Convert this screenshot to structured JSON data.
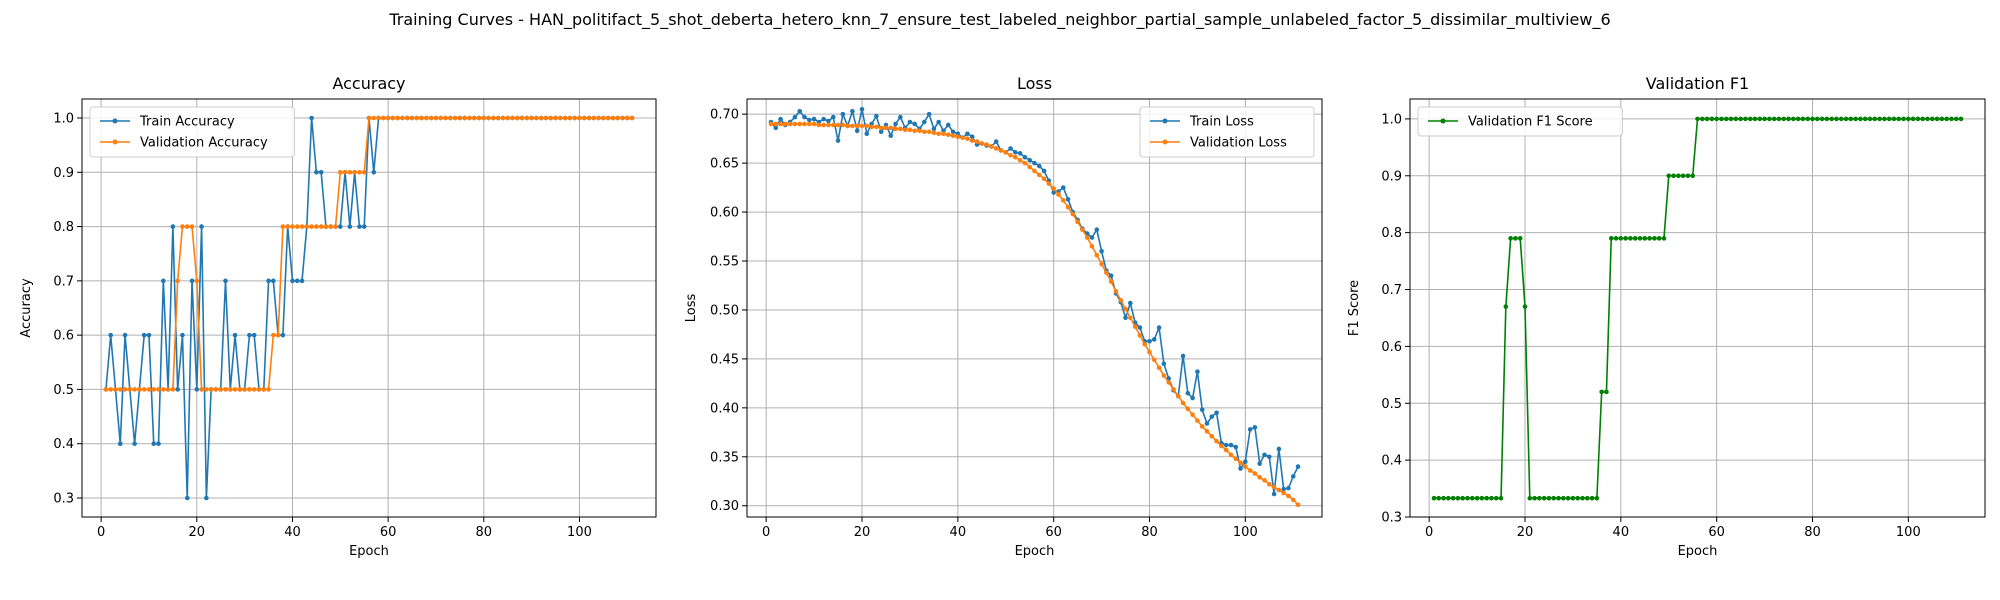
{
  "suptitle": "Training Curves - HAN_politifact_5_shot_deberta_hetero_knn_7_ensure_test_labeled_neighbor_partial_sample_unlabeled_factor_5_dissimilar_multiview_6",
  "colors": {
    "blue": "#1f77b4",
    "orange": "#ff7f0e",
    "green": "#008000",
    "grid": "#b0b0b0"
  },
  "chart_data": [
    {
      "type": "line",
      "title": "Accuracy",
      "xlabel": "Epoch",
      "ylabel": "Accuracy",
      "xlim": [
        -4,
        116
      ],
      "ylim": [
        0.265,
        1.035
      ],
      "xticks": [
        0,
        20,
        40,
        60,
        80,
        100
      ],
      "xtick_labels": [
        "0",
        "20",
        "40",
        "60",
        "80",
        "100"
      ],
      "yticks": [
        0.3,
        0.4,
        0.5,
        0.6,
        0.7,
        0.8,
        0.9,
        1.0
      ],
      "ytick_labels": [
        "0.3",
        "0.4",
        "0.5",
        "0.6",
        "0.7",
        "0.8",
        "0.9",
        "1.0"
      ],
      "grid": true,
      "legend_position": "upper left",
      "series": [
        {
          "name": "Train Accuracy",
          "color": "#1f77b4",
          "x_start": 1,
          "values": [
            0.5,
            0.6,
            0.5,
            0.4,
            0.6,
            0.5,
            0.4,
            0.5,
            0.6,
            0.6,
            0.4,
            0.4,
            0.7,
            0.5,
            0.8,
            0.5,
            0.6,
            0.3,
            0.7,
            0.5,
            0.8,
            0.3,
            0.5,
            0.5,
            0.5,
            0.7,
            0.5,
            0.6,
            0.5,
            0.5,
            0.6,
            0.6,
            0.5,
            0.5,
            0.7,
            0.7,
            0.6,
            0.6,
            0.8,
            0.7,
            0.7,
            0.7,
            0.8,
            1.0,
            0.9,
            0.9,
            0.8,
            0.8,
            0.8,
            0.8,
            0.9,
            0.8,
            0.9,
            0.8,
            0.8,
            1.0,
            0.9,
            1.0,
            1.0,
            1.0,
            1.0,
            1.0,
            1.0,
            1.0,
            1.0,
            1.0,
            1.0,
            1.0,
            1.0,
            1.0,
            1.0,
            1.0,
            1.0,
            1.0,
            1.0,
            1.0,
            1.0,
            1.0,
            1.0,
            1.0,
            1.0,
            1.0,
            1.0,
            1.0,
            1.0,
            1.0,
            1.0,
            1.0,
            1.0,
            1.0,
            1.0,
            1.0,
            1.0,
            1.0,
            1.0,
            1.0,
            1.0,
            1.0,
            1.0,
            1.0,
            1.0,
            1.0,
            1.0,
            1.0,
            1.0,
            1.0,
            1.0,
            1.0,
            1.0,
            1.0,
            1.0
          ]
        },
        {
          "name": "Validation Accuracy",
          "color": "#ff7f0e",
          "x_start": 1,
          "values": [
            0.5,
            0.5,
            0.5,
            0.5,
            0.5,
            0.5,
            0.5,
            0.5,
            0.5,
            0.5,
            0.5,
            0.5,
            0.5,
            0.5,
            0.5,
            0.7,
            0.8,
            0.8,
            0.8,
            0.7,
            0.5,
            0.5,
            0.5,
            0.5,
            0.5,
            0.5,
            0.5,
            0.5,
            0.5,
            0.5,
            0.5,
            0.5,
            0.5,
            0.5,
            0.5,
            0.6,
            0.6,
            0.8,
            0.8,
            0.8,
            0.8,
            0.8,
            0.8,
            0.8,
            0.8,
            0.8,
            0.8,
            0.8,
            0.8,
            0.9,
            0.9,
            0.9,
            0.9,
            0.9,
            0.9,
            1.0,
            1.0,
            1.0,
            1.0,
            1.0,
            1.0,
            1.0,
            1.0,
            1.0,
            1.0,
            1.0,
            1.0,
            1.0,
            1.0,
            1.0,
            1.0,
            1.0,
            1.0,
            1.0,
            1.0,
            1.0,
            1.0,
            1.0,
            1.0,
            1.0,
            1.0,
            1.0,
            1.0,
            1.0,
            1.0,
            1.0,
            1.0,
            1.0,
            1.0,
            1.0,
            1.0,
            1.0,
            1.0,
            1.0,
            1.0,
            1.0,
            1.0,
            1.0,
            1.0,
            1.0,
            1.0,
            1.0,
            1.0,
            1.0,
            1.0,
            1.0,
            1.0,
            1.0,
            1.0,
            1.0,
            1.0
          ]
        }
      ]
    },
    {
      "type": "line",
      "title": "Loss",
      "xlabel": "Epoch",
      "ylabel": "Loss",
      "xlim": [
        -4,
        116
      ],
      "ylim": [
        0.2885,
        0.7155
      ],
      "xticks": [
        0,
        20,
        40,
        60,
        80,
        100
      ],
      "xtick_labels": [
        "0",
        "20",
        "40",
        "60",
        "80",
        "100"
      ],
      "yticks": [
        0.3,
        0.35,
        0.4,
        0.45,
        0.5,
        0.55,
        0.6,
        0.65,
        0.7
      ],
      "ytick_labels": [
        "0.30",
        "0.35",
        "0.40",
        "0.45",
        "0.50",
        "0.55",
        "0.60",
        "0.65",
        "0.70"
      ],
      "grid": true,
      "legend_position": "upper right",
      "series": [
        {
          "name": "Train Loss",
          "color": "#1f77b4",
          "x_start": 1,
          "values": [
            0.692,
            0.686,
            0.695,
            0.689,
            0.692,
            0.697,
            0.703,
            0.697,
            0.694,
            0.695,
            0.692,
            0.695,
            0.693,
            0.697,
            0.673,
            0.7,
            0.688,
            0.703,
            0.683,
            0.705,
            0.68,
            0.69,
            0.698,
            0.682,
            0.689,
            0.678,
            0.69,
            0.697,
            0.686,
            0.692,
            0.69,
            0.685,
            0.692,
            0.7,
            0.685,
            0.692,
            0.683,
            0.689,
            0.682,
            0.68,
            0.676,
            0.68,
            0.677,
            0.669,
            0.67,
            0.668,
            0.667,
            0.672,
            0.663,
            0.661,
            0.665,
            0.661,
            0.66,
            0.656,
            0.653,
            0.65,
            0.647,
            0.642,
            0.632,
            0.62,
            0.621,
            0.625,
            0.613,
            0.6,
            0.592,
            0.583,
            0.578,
            0.574,
            0.582,
            0.56,
            0.54,
            0.535,
            0.517,
            0.508,
            0.492,
            0.507,
            0.487,
            0.482,
            0.468,
            0.468,
            0.47,
            0.482,
            0.445,
            0.43,
            0.418,
            0.412,
            0.453,
            0.415,
            0.41,
            0.437,
            0.398,
            0.384,
            0.391,
            0.395,
            0.364,
            0.362,
            0.362,
            0.36,
            0.338,
            0.345,
            0.378,
            0.38,
            0.343,
            0.352,
            0.35,
            0.312,
            0.358,
            0.317,
            0.318,
            0.33,
            0.34
          ]
        },
        {
          "name": "Validation Loss",
          "color": "#ff7f0e",
          "x_start": 1,
          "values": [
            0.69,
            0.69,
            0.69,
            0.69,
            0.69,
            0.69,
            0.69,
            0.69,
            0.69,
            0.69,
            0.689,
            0.689,
            0.689,
            0.689,
            0.689,
            0.689,
            0.688,
            0.688,
            0.688,
            0.688,
            0.688,
            0.687,
            0.687,
            0.686,
            0.686,
            0.686,
            0.685,
            0.685,
            0.684,
            0.684,
            0.683,
            0.683,
            0.682,
            0.682,
            0.681,
            0.68,
            0.68,
            0.679,
            0.678,
            0.677,
            0.676,
            0.675,
            0.673,
            0.672,
            0.67,
            0.669,
            0.667,
            0.665,
            0.663,
            0.661,
            0.658,
            0.656,
            0.653,
            0.65,
            0.646,
            0.642,
            0.638,
            0.634,
            0.629,
            0.624,
            0.618,
            0.612,
            0.605,
            0.598,
            0.59,
            0.582,
            0.574,
            0.565,
            0.556,
            0.547,
            0.538,
            0.529,
            0.519,
            0.51,
            0.501,
            0.492,
            0.483,
            0.474,
            0.465,
            0.457,
            0.449,
            0.441,
            0.433,
            0.426,
            0.419,
            0.412,
            0.405,
            0.399,
            0.393,
            0.387,
            0.381,
            0.376,
            0.371,
            0.366,
            0.361,
            0.357,
            0.352,
            0.348,
            0.344,
            0.34,
            0.336,
            0.333,
            0.329,
            0.326,
            0.322,
            0.319,
            0.316,
            0.313,
            0.31,
            0.306,
            0.301
          ]
        }
      ]
    },
    {
      "type": "line",
      "title": "Validation F1",
      "xlabel": "Epoch",
      "ylabel": "F1 Score",
      "xlim": [
        -4,
        116
      ],
      "ylim": [
        0.3,
        1.035
      ],
      "xticks": [
        0,
        20,
        40,
        60,
        80,
        100
      ],
      "xtick_labels": [
        "0",
        "20",
        "40",
        "60",
        "80",
        "100"
      ],
      "yticks": [
        0.3,
        0.4,
        0.5,
        0.6,
        0.7,
        0.8,
        0.9,
        1.0
      ],
      "ytick_labels": [
        "0.3",
        "0.4",
        "0.5",
        "0.6",
        "0.7",
        "0.8",
        "0.9",
        "1.0"
      ],
      "grid": true,
      "legend_position": "upper left",
      "series": [
        {
          "name": "Validation F1 Score",
          "color": "#008000",
          "x_start": 1,
          "values": [
            0.333,
            0.333,
            0.333,
            0.333,
            0.333,
            0.333,
            0.333,
            0.333,
            0.333,
            0.333,
            0.333,
            0.333,
            0.333,
            0.333,
            0.333,
            0.67,
            0.79,
            0.79,
            0.79,
            0.67,
            0.333,
            0.333,
            0.333,
            0.333,
            0.333,
            0.333,
            0.333,
            0.333,
            0.333,
            0.333,
            0.333,
            0.333,
            0.333,
            0.333,
            0.333,
            0.52,
            0.52,
            0.79,
            0.79,
            0.79,
            0.79,
            0.79,
            0.79,
            0.79,
            0.79,
            0.79,
            0.79,
            0.79,
            0.79,
            0.9,
            0.9,
            0.9,
            0.9,
            0.9,
            0.9,
            1.0,
            1.0,
            1.0,
            1.0,
            1.0,
            1.0,
            1.0,
            1.0,
            1.0,
            1.0,
            1.0,
            1.0,
            1.0,
            1.0,
            1.0,
            1.0,
            1.0,
            1.0,
            1.0,
            1.0,
            1.0,
            1.0,
            1.0,
            1.0,
            1.0,
            1.0,
            1.0,
            1.0,
            1.0,
            1.0,
            1.0,
            1.0,
            1.0,
            1.0,
            1.0,
            1.0,
            1.0,
            1.0,
            1.0,
            1.0,
            1.0,
            1.0,
            1.0,
            1.0,
            1.0,
            1.0,
            1.0,
            1.0,
            1.0,
            1.0,
            1.0,
            1.0,
            1.0,
            1.0,
            1.0,
            1.0
          ]
        }
      ]
    }
  ]
}
